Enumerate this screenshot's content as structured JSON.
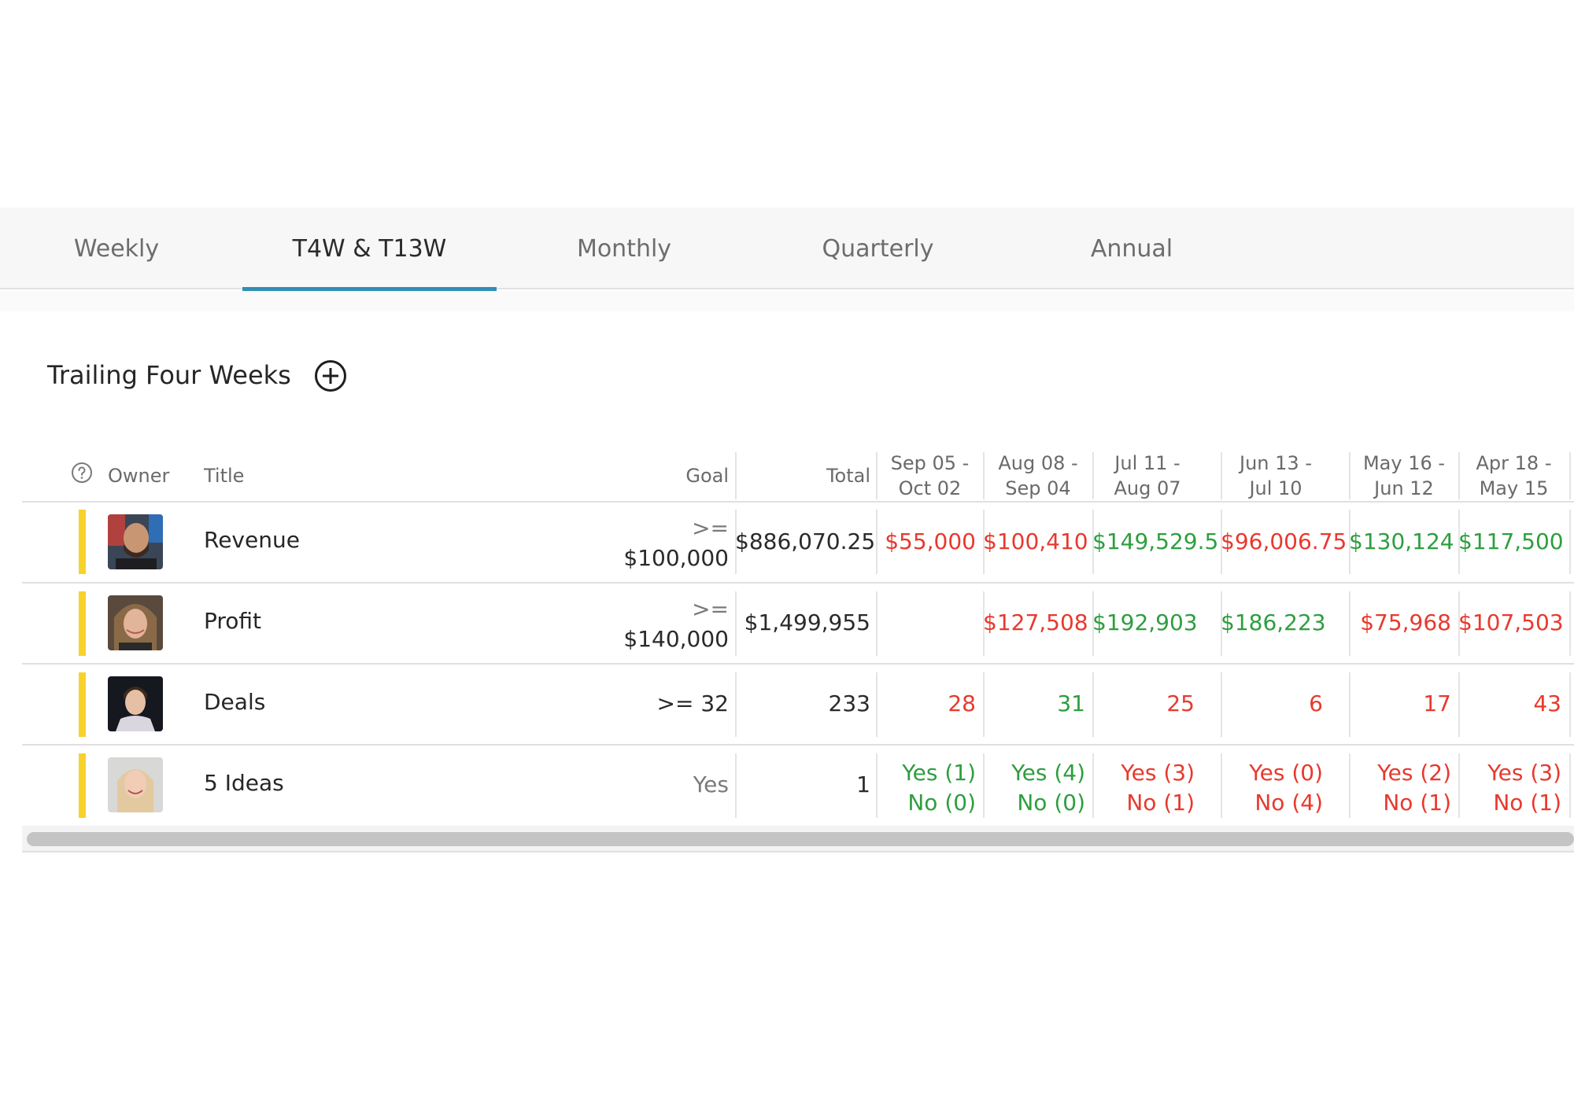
{
  "tabs": [
    {
      "label": "Weekly"
    },
    {
      "label": "T4W & T13W"
    },
    {
      "label": "Monthly"
    },
    {
      "label": "Quarterly"
    },
    {
      "label": "Annual"
    }
  ],
  "section": {
    "title": "Trailing Four Weeks"
  },
  "columns": {
    "owner": "Owner",
    "title": "Title",
    "goal": "Goal",
    "total": "Total",
    "periods": [
      {
        "line1": "Sep 05 -",
        "line2": "Oct 02"
      },
      {
        "line1": "Aug 08 -",
        "line2": "Sep 04"
      },
      {
        "line1": "Jul 11 -",
        "line2": "Aug 07"
      },
      {
        "line1": "Jun 13 -",
        "line2": "Jul 10"
      },
      {
        "line1": "May 16 -",
        "line2": "Jun 12"
      },
      {
        "line1": "Apr 18 -",
        "line2": "May 15"
      }
    ]
  },
  "rows": [
    {
      "title": "Revenue",
      "goal_op": ">=",
      "goal_value": "$100,000",
      "total": "$886,070.25",
      "values": [
        "$55,000",
        "$100,410",
        "$149,529.5",
        "$96,006.75",
        "$130,124",
        "$117,500"
      ]
    },
    {
      "title": "Profit",
      "goal_op": ">=",
      "goal_value": "$140,000",
      "total": "$1,499,955",
      "values": [
        "",
        "$127,508",
        "$192,903",
        "$186,223",
        "$75,968",
        "$107,503"
      ]
    },
    {
      "title": "Deals",
      "goal": ">= 32",
      "total": "233",
      "values": [
        "28",
        "31",
        "25",
        "6",
        "17",
        "43"
      ]
    },
    {
      "title": "5 Ideas",
      "goal": "Yes",
      "total": "1",
      "values": [
        {
          "yes": "Yes (1)",
          "no": "No (0)"
        },
        {
          "yes": "Yes (4)",
          "no": "No (0)"
        },
        {
          "yes": "Yes (3)",
          "no": "No (1)"
        },
        {
          "yes": "Yes (0)",
          "no": "No (4)"
        },
        {
          "yes": "Yes (2)",
          "no": "No (1)"
        },
        {
          "yes": "Yes (3)",
          "no": "No (1)"
        }
      ]
    }
  ],
  "colors": {
    "accent": "#2f8fb6",
    "good": "#2e9e3f",
    "bad": "#e8392e",
    "owner_bar": "#f7d22a"
  },
  "icons": {
    "help": "question-circle-icon",
    "add": "plus-circle-icon"
  }
}
